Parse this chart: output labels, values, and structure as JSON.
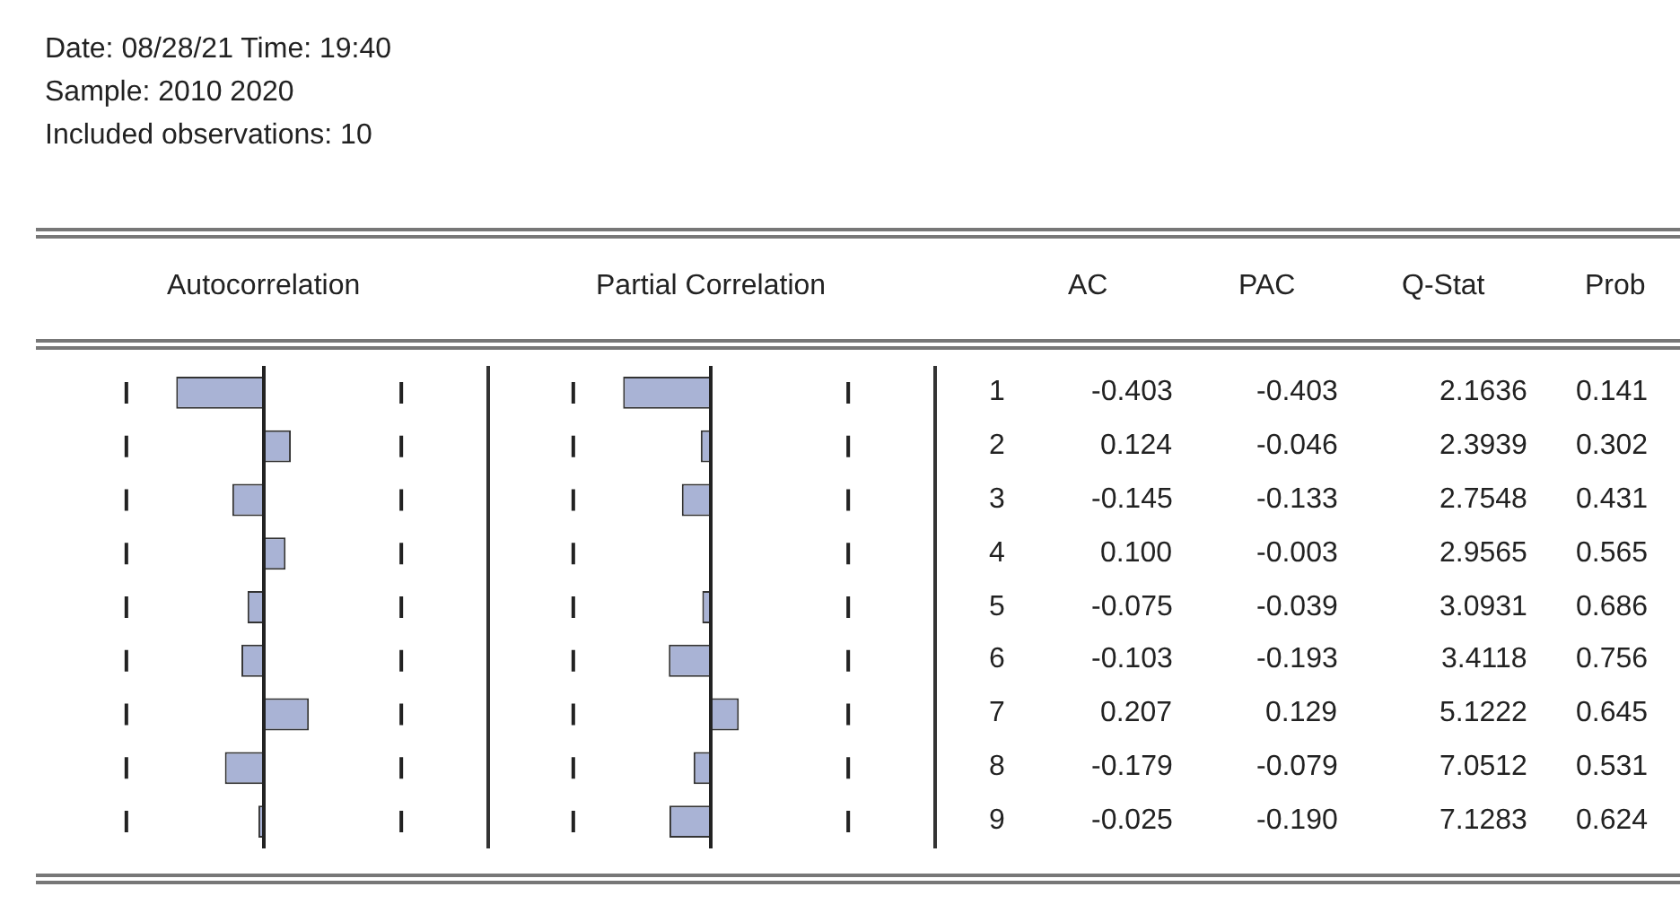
{
  "chart_data": [
    {
      "type": "bar",
      "orientation": "horizontal",
      "title": "Autocorrelation",
      "annotations": [
        "AC"
      ],
      "categories": [
        "1",
        "2",
        "3",
        "4",
        "5",
        "6",
        "7",
        "8",
        "9"
      ],
      "color": "#a9b3d5",
      "values": [
        -0.403,
        0.124,
        -0.145,
        0.1,
        -0.075,
        -0.103,
        0.207,
        -0.179,
        -0.025
      ],
      "value_labels": [
        "-0.403",
        "0.124",
        "-0.145",
        "0.100",
        "-0.075",
        "-0.103",
        "0.207",
        "-0.179",
        "-0.025"
      ],
      "tick_labels": "y",
      "line_style": "dashed",
      "ref_lines": [
        {
          "axis": "x",
          "value": -0.632
        },
        {
          "axis": "x",
          "value": 0.632
        }
      ]
    },
    {
      "type": "bar",
      "orientation": "horizontal",
      "title": "Partial Correlation",
      "annotations": [
        "PAC"
      ],
      "categories": [
        "1",
        "2",
        "3",
        "4",
        "5",
        "6",
        "7",
        "8",
        "9"
      ],
      "color": "#a9b3d5",
      "values": [
        -0.403,
        -0.046,
        -0.133,
        -0.003,
        -0.039,
        -0.193,
        0.129,
        -0.079,
        -0.19
      ],
      "value_labels": [
        "-0.403",
        "-0.046",
        "-0.133",
        "-0.003",
        "-0.039",
        "-0.193",
        "0.129",
        "-0.079",
        "-0.190"
      ],
      "tick_labels": false,
      "line_style": "dashed",
      "ref_lines": [
        {
          "axis": "x",
          "value": -0.632
        },
        {
          "axis": "x",
          "value": 0.632
        }
      ]
    },
    {
      "type": "other",
      "title": "Date: 08/28/21   Time: 19:40",
      "subtitle": "Sample: 2010 2020\nIncluded observations: 10",
      "annotations": [
        "Q-Stat",
        "2.1636",
        "2.3939",
        "2.7548",
        "2.9565",
        "3.0931",
        "3.4118",
        "5.1222",
        "7.0512",
        "7.1283",
        "Prob",
        "0.141",
        "0.302",
        "0.431",
        "0.565",
        "0.686",
        "0.756",
        "0.645",
        "0.531",
        "0.624"
      ]
    }
  ]
}
